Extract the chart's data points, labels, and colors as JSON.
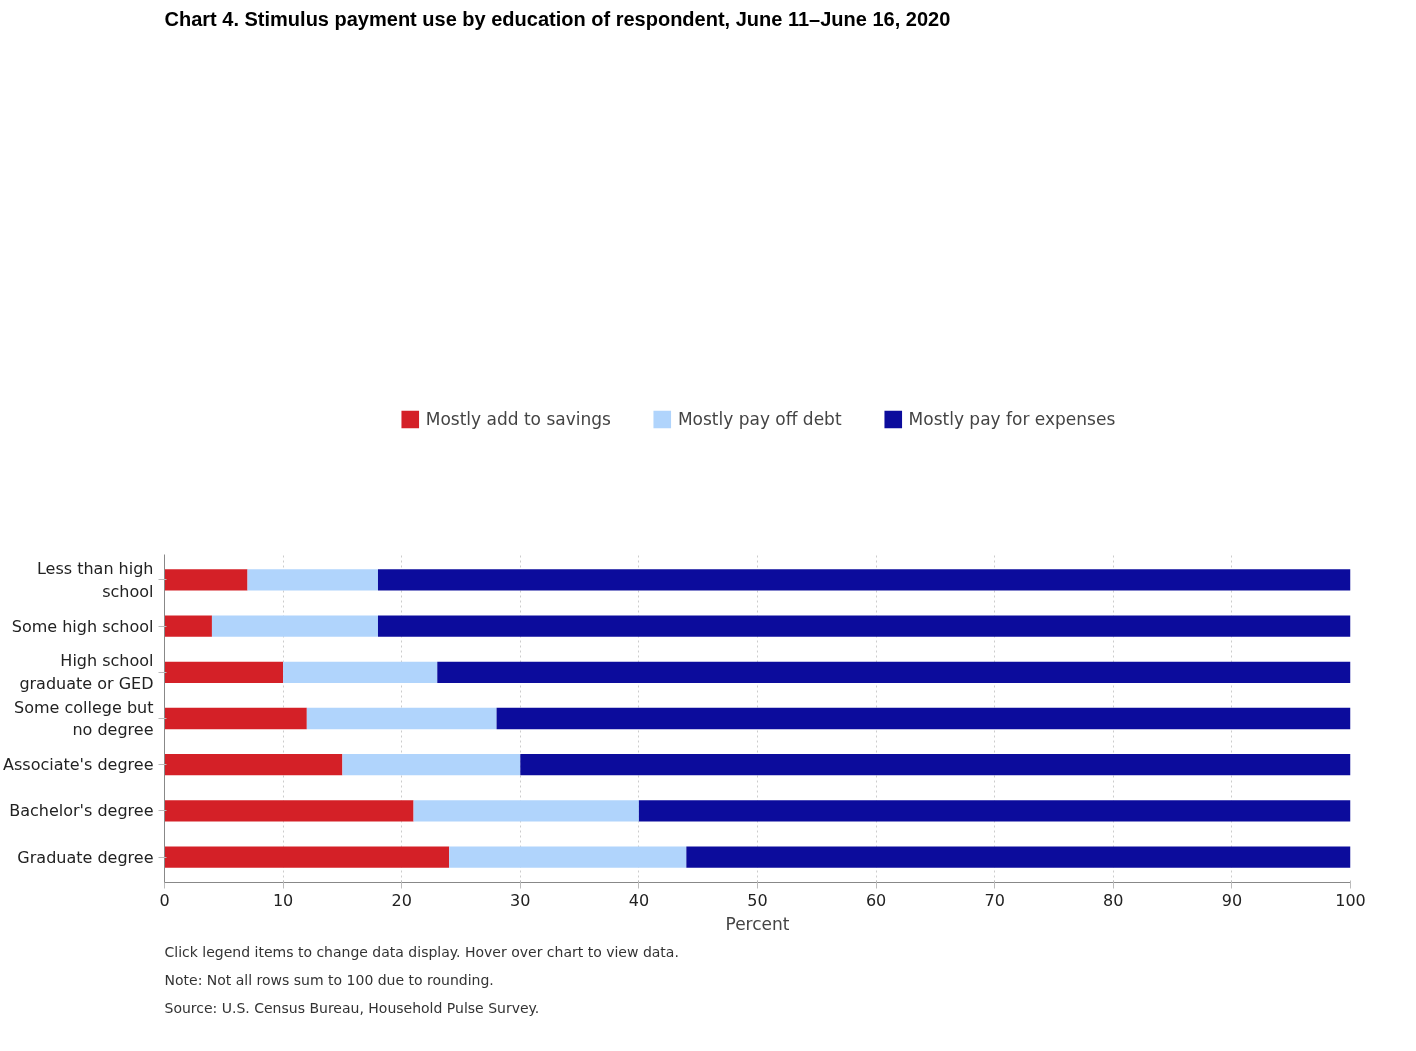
{
  "chart_data": {
    "type": "bar",
    "orientation": "horizontal",
    "stacked": true,
    "title": "Chart 4. Stimulus payment use by education of respondent, June 11–June 16, 2020",
    "xlabel": "Percent",
    "categories": [
      "Less than high school",
      "Some high school",
      "High school graduate or GED",
      "Some college but no degree",
      "Associate's degree",
      "Bachelor's degree",
      "Graduate degree"
    ],
    "series": [
      {
        "name": "Mostly add to savings",
        "color": "#d42027",
        "values": [
          7,
          4,
          10,
          12,
          15,
          21,
          24
        ]
      },
      {
        "name": "Mostly pay off debt",
        "color": "#b0d4fc",
        "values": [
          11,
          14,
          13,
          16,
          15,
          19,
          20
        ]
      },
      {
        "name": "Mostly pay for expenses",
        "color": "#0c0c9c",
        "values": [
          82,
          82,
          77,
          72,
          70,
          60,
          56
        ]
      }
    ],
    "xlim": [
      0,
      100
    ],
    "xticks": [
      0,
      10,
      20,
      30,
      40,
      50,
      60,
      70,
      80,
      90,
      100
    ],
    "grid": "x",
    "legend": "top",
    "annotations": [
      "Click legend items to change data display. Hover over chart to view data.",
      "Note: Not all rows sum to 100 due to rounding.",
      "Source: U.S. Census Bureau, Household Pulse Survey."
    ]
  }
}
